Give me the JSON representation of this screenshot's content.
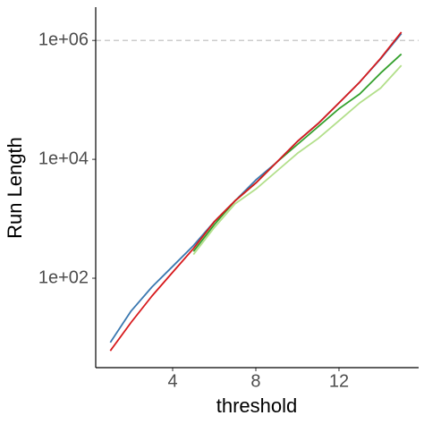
{
  "chart_data": {
    "type": "line",
    "x_label": "threshold",
    "y_label": "Run Length",
    "x": [
      1,
      2,
      3,
      4,
      5,
      6,
      7,
      8,
      9,
      10,
      11,
      12,
      13,
      14,
      15
    ],
    "series": [
      {
        "color": "#3a78b0",
        "values": [
          8.3,
          28,
          71,
          158,
          355,
          890,
          2000,
          4500,
          8900,
          20000,
          40000,
          89000,
          200000,
          490000,
          1300000
        ]
      },
      {
        "color": "#b2df8a",
        "values": [
          null,
          null,
          null,
          null,
          251,
          708,
          1780,
          3160,
          6300,
          12600,
          22400,
          44700,
          89000,
          158000,
          380000
        ]
      },
      {
        "color": "#33a02c",
        "values": [
          null,
          null,
          null,
          null,
          282,
          794,
          2000,
          4000,
          8900,
          17800,
          35500,
          71000,
          126000,
          282000,
          590000
        ]
      },
      {
        "color": "#d7191c",
        "values": [
          6,
          18,
          50,
          126,
          316,
          890,
          2000,
          4000,
          8900,
          20000,
          40000,
          89000,
          200000,
          500000,
          1380000
        ]
      }
    ],
    "xlim": [
      0.3,
      15.83
    ],
    "xticks": [
      4,
      8,
      12
    ],
    "ylim": [
      3.13,
      3630000
    ],
    "log_y": true,
    "yticks": [
      {
        "value": 100,
        "label": "1e+02"
      },
      {
        "value": 10000,
        "label": "1e+04"
      },
      {
        "value": 1000000,
        "label": "1e+06"
      }
    ],
    "hline": 1000000,
    "hline_color": "#bbbbbb"
  }
}
